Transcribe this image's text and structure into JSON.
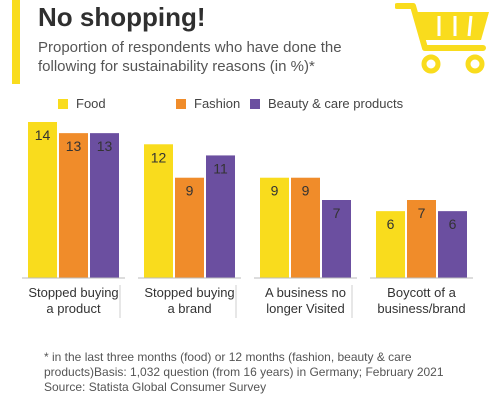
{
  "header": {
    "title": "No shopping!",
    "subtitle": "Proportion of respondents who have done the following for sustainability reasons (in %)*"
  },
  "colors": {
    "accent": "#f9dc1d",
    "food": "#f9dc1d",
    "fashion": "#f08c2a",
    "beauty": "#6b4fa0"
  },
  "icons": {
    "cart": "shopping-cart-icon"
  },
  "chart_data": {
    "type": "bar",
    "categories": [
      [
        "Stopped buying",
        "a product"
      ],
      [
        "Stopped buying",
        "a brand"
      ],
      [
        "A business no",
        "longer Visited"
      ],
      [
        "Boycott of a",
        "business/brand"
      ]
    ],
    "series": [
      {
        "name": "Food",
        "values": [
          14,
          12,
          9,
          6
        ],
        "color": "#f9dc1d"
      },
      {
        "name": "Fashion",
        "values": [
          13,
          9,
          9,
          7
        ],
        "color": "#f08c2a"
      },
      {
        "name": "Beauty & care products",
        "values": [
          13,
          11,
          7,
          6
        ],
        "color": "#6b4fa0"
      }
    ],
    "ylim": [
      0,
      14
    ],
    "grid": false,
    "legend": "top"
  },
  "footnote": {
    "line1": "* in the last three months (food) or 12 months (fashion, beauty & care products)Basis: 1,032 question (from 16 years) in Germany; February 2021",
    "line2": "Source: Statista Global Consumer Survey"
  }
}
